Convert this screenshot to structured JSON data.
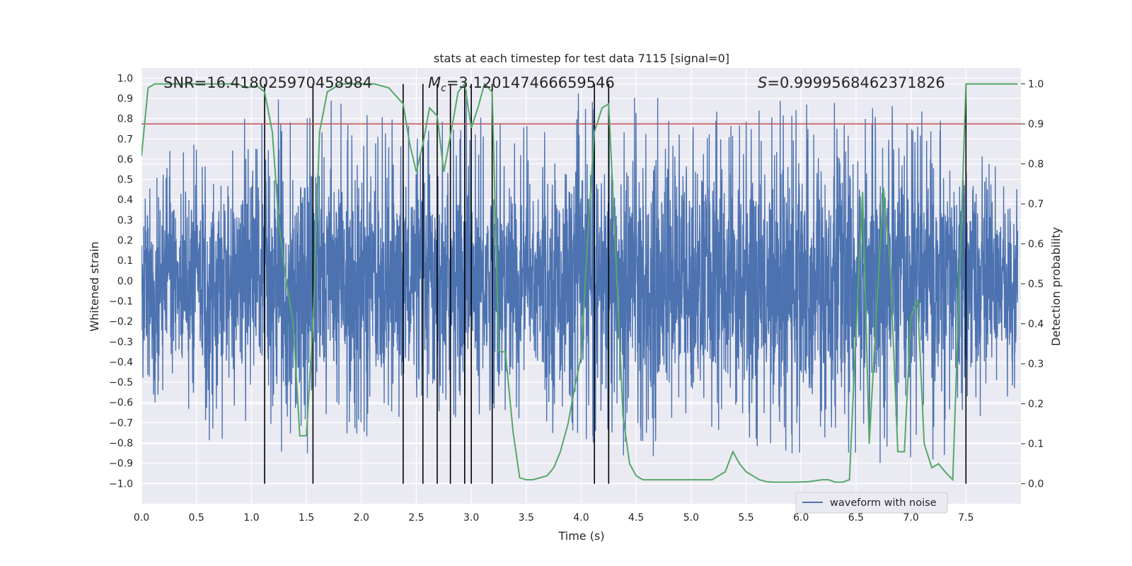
{
  "chart_data": {
    "type": "line",
    "title": "stats at each timestep for test data 7115 [signal=0]",
    "xlabel": "Time (s)",
    "ylabel_left": "Whitened strain",
    "ylabel_right": "Detection probability",
    "xlim": [
      0.0,
      8.0
    ],
    "ylim_left": [
      -1.1,
      1.05
    ],
    "ylim_right": [
      -0.05,
      1.04
    ],
    "x_ticks": [
      "0.0",
      "0.5",
      "1.0",
      "1.5",
      "2.0",
      "2.5",
      "3.0",
      "3.5",
      "4.0",
      "4.5",
      "5.0",
      "5.5",
      "6.0",
      "6.5",
      "7.0",
      "7.5"
    ],
    "y_left_ticks": [
      "1.0",
      "0.9",
      "0.8",
      "0.7",
      "0.6",
      "0.5",
      "0.4",
      "0.3",
      "0.2",
      "0.1",
      "0.0",
      "-0.1",
      "-0.2",
      "-0.3",
      "-0.4",
      "-0.5",
      "-0.6",
      "-0.7",
      "-0.8",
      "-0.9",
      "-1.0"
    ],
    "y_right_ticks": [
      "1.0",
      "0.9",
      "0.8",
      "0.7",
      "0.6",
      "0.5",
      "0.4",
      "0.3",
      "0.2",
      "0.1",
      "0.0"
    ],
    "grid": true,
    "legend_position": "lower-right",
    "annotations": {
      "snr": "SNR=16.418025970458984",
      "chirp_mass_symbol": "M",
      "chirp_mass_subscript": "c",
      "chirp_mass_value": "=3.120147466659546",
      "s_symbol": "S",
      "s_value": "=0.9999568462371826"
    },
    "threshold": 0.9,
    "detection_lines_x": [
      1.12,
      1.56,
      2.38,
      2.56,
      2.69,
      2.81,
      2.94,
      3.0,
      3.19,
      4.12,
      4.25,
      7.5
    ],
    "series": [
      {
        "name": "waveform with noise",
        "axis": "left",
        "envelope_x": [
          0.0,
          0.5,
          1.0,
          1.5,
          2.0,
          2.5,
          3.0,
          3.5,
          4.0,
          4.5,
          5.0,
          5.5,
          6.0,
          6.5,
          7.0,
          7.5,
          7.97
        ],
        "envelope_upper": [
          0.52,
          0.75,
          0.83,
          0.96,
          0.82,
          0.78,
          0.98,
          0.77,
          0.93,
          0.9,
          0.9,
          0.95,
          0.93,
          0.84,
          0.87,
          0.77,
          0.55
        ],
        "envelope_lower": [
          -0.57,
          -0.78,
          -0.83,
          -0.85,
          -0.89,
          -0.6,
          -0.72,
          -0.73,
          -0.77,
          -0.9,
          -0.8,
          -0.8,
          -0.87,
          -0.93,
          -0.95,
          -0.8,
          -0.55
        ]
      },
      {
        "name": "detection probability",
        "axis": "right",
        "x": [
          0.0,
          0.06,
          0.12,
          0.25,
          0.5,
          0.75,
          0.88,
          0.95,
          1.05,
          1.12,
          1.19,
          1.25,
          1.31,
          1.38,
          1.44,
          1.5,
          1.56,
          1.62,
          1.69,
          1.81,
          1.94,
          2.12,
          2.25,
          2.38,
          2.44,
          2.5,
          2.56,
          2.62,
          2.69,
          2.75,
          2.81,
          2.88,
          2.94,
          3.0,
          3.06,
          3.12,
          3.19,
          3.25,
          3.31,
          3.38,
          3.44,
          3.5,
          3.56,
          3.69,
          3.75,
          3.81,
          3.88,
          3.94,
          4.0,
          4.06,
          4.12,
          4.19,
          4.25,
          4.31,
          4.38,
          4.44,
          4.5,
          4.56,
          4.69,
          4.81,
          4.94,
          5.06,
          5.19,
          5.25,
          5.31,
          5.38,
          5.44,
          5.5,
          5.56,
          5.62,
          5.69,
          5.75,
          5.81,
          5.94,
          6.06,
          6.19,
          6.25,
          6.31,
          6.38,
          6.44,
          6.5,
          6.56,
          6.62,
          6.69,
          6.75,
          6.81,
          6.88,
          6.94,
          7.0,
          7.06,
          7.12,
          7.19,
          7.25,
          7.31,
          7.38,
          7.44,
          7.5,
          7.56,
          7.62,
          7.69,
          7.75,
          7.81,
          7.88,
          7.97
        ],
        "values": [
          0.82,
          0.99,
          1.0,
          1.0,
          1.0,
          1.0,
          1.0,
          0.99,
          0.995,
          0.98,
          0.88,
          0.65,
          0.52,
          0.4,
          0.12,
          0.12,
          0.4,
          0.88,
          0.98,
          1.0,
          1.0,
          1.0,
          0.99,
          0.95,
          0.85,
          0.78,
          0.85,
          0.94,
          0.92,
          0.78,
          0.87,
          0.98,
          1.0,
          0.89,
          0.94,
          1.0,
          0.98,
          0.33,
          0.33,
          0.13,
          0.015,
          0.01,
          0.01,
          0.02,
          0.04,
          0.08,
          0.15,
          0.24,
          0.32,
          0.62,
          0.88,
          0.94,
          0.95,
          0.6,
          0.17,
          0.05,
          0.02,
          0.01,
          0.01,
          0.01,
          0.01,
          0.01,
          0.01,
          0.02,
          0.03,
          0.08,
          0.05,
          0.03,
          0.02,
          0.01,
          0.005,
          0.004,
          0.004,
          0.004,
          0.005,
          0.01,
          0.01,
          0.004,
          0.004,
          0.01,
          0.38,
          0.73,
          0.1,
          0.45,
          0.74,
          0.55,
          0.08,
          0.08,
          0.42,
          0.46,
          0.1,
          0.04,
          0.05,
          0.03,
          0.01,
          0.5,
          1.0,
          1.0,
          1.0,
          1.0,
          1.0,
          1.0,
          1.0,
          1.0
        ]
      }
    ]
  },
  "legend": {
    "label": "waveform with noise"
  },
  "colors": {
    "plot_bg": "#eaeaf2",
    "grid": "#ffffff",
    "waveform": "#4c72b0",
    "probability": "#55a868",
    "threshold": "#c44e52",
    "vlines": "#000000"
  }
}
